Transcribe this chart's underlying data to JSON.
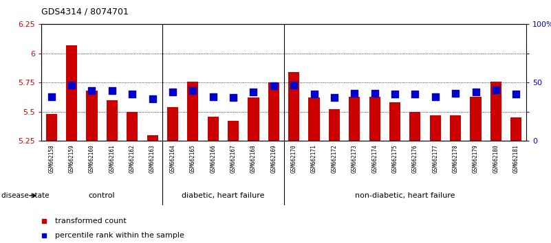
{
  "title": "GDS4314 / 8074701",
  "samples": [
    "GSM662158",
    "GSM662159",
    "GSM662160",
    "GSM662161",
    "GSM662162",
    "GSM662163",
    "GSM662164",
    "GSM662165",
    "GSM662166",
    "GSM662167",
    "GSM662168",
    "GSM662169",
    "GSM662170",
    "GSM662171",
    "GSM662172",
    "GSM662173",
    "GSM662174",
    "GSM662175",
    "GSM662176",
    "GSM662177",
    "GSM662178",
    "GSM662179",
    "GSM662180",
    "GSM662181"
  ],
  "transformed_count": [
    5.48,
    6.07,
    5.68,
    5.6,
    5.5,
    5.3,
    5.54,
    5.76,
    5.46,
    5.42,
    5.62,
    5.75,
    5.84,
    5.62,
    5.52,
    5.63,
    5.63,
    5.58,
    5.5,
    5.47,
    5.47,
    5.63,
    5.76,
    5.45
  ],
  "percentile_rank": [
    38,
    48,
    43,
    43,
    40,
    36,
    42,
    43,
    38,
    37,
    42,
    47,
    48,
    40,
    37,
    41,
    41,
    40,
    40,
    38,
    41,
    42,
    44,
    40
  ],
  "group_configs": [
    [
      0,
      6,
      "control"
    ],
    [
      6,
      12,
      "diabetic, heart failure"
    ],
    [
      12,
      24,
      "non-diabetic, heart failure"
    ]
  ],
  "group_dividers": [
    6,
    12
  ],
  "ylim_left": [
    5.25,
    6.25
  ],
  "ylim_right": [
    0,
    100
  ],
  "yticks_left": [
    5.25,
    5.5,
    5.75,
    6.0,
    6.25
  ],
  "ytick_labels_left": [
    "5.25",
    "5.5",
    "5.75",
    "6",
    "6.25"
  ],
  "yticks_right": [
    0,
    25,
    50,
    75,
    100
  ],
  "ytick_labels_right": [
    "0",
    "25",
    "50",
    "75",
    "100%"
  ],
  "bar_color": "#CC0000",
  "dot_color": "#0000CC",
  "bar_width": 0.55,
  "dot_size": 45,
  "background_color": "#FFFFFF",
  "label_area_color": "#C8C8C8",
  "group_area_color": "#90EE90",
  "disease_state_label": "disease state",
  "legend_items": [
    {
      "label": "transformed count",
      "color": "#CC0000"
    },
    {
      "label": "percentile rank within the sample",
      "color": "#0000CC"
    }
  ],
  "title_fontsize": 9,
  "axis_fontsize": 8,
  "label_fontsize": 5.5,
  "group_fontsize": 8,
  "legend_fontsize": 8
}
